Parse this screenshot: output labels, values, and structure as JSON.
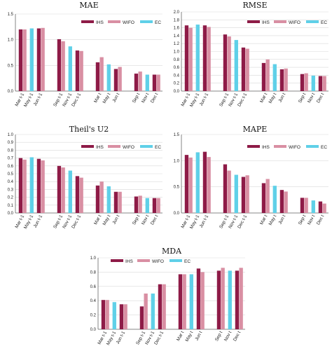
{
  "colors": {
    "IHS": "#8e1b47",
    "WIFO": "#d98fa3",
    "EC": "#5fd0e8"
  },
  "legend": [
    "IHS",
    "WIFO",
    "EC"
  ],
  "chart_data": [
    {
      "type": "bar",
      "title": "MAE",
      "categories": [
        "Mar t-1",
        "May t-1",
        "Jun t-1",
        "Sep t-1",
        "Nov t-1",
        "Dec t-1",
        "Mar t",
        "May t",
        "Jun t",
        "Sep t",
        "Nov t",
        "Dec t"
      ],
      "ylim": [
        0,
        1.5
      ],
      "yticks": [
        0,
        0.5,
        1.0,
        1.5
      ],
      "yticklabels": [
        "0.0",
        "0.5",
        "1.0",
        "1.5"
      ],
      "grid": true,
      "legend_position": "top-right",
      "series": [
        {
          "name": "IHS",
          "values": [
            1.2,
            null,
            1.22,
            1.01,
            null,
            0.79,
            0.56,
            null,
            0.43,
            0.34,
            null,
            0.32
          ]
        },
        {
          "name": "WIFO",
          "values": [
            1.2,
            null,
            1.23,
            0.97,
            null,
            0.78,
            0.66,
            null,
            0.47,
            0.38,
            null,
            0.32
          ]
        },
        {
          "name": "EC",
          "values": [
            null,
            1.22,
            null,
            null,
            0.87,
            null,
            null,
            0.52,
            null,
            null,
            0.32,
            null
          ]
        }
      ]
    },
    {
      "type": "bar",
      "title": "RMSE",
      "categories": [
        "Mar t-1",
        "May t-1",
        "Jun t-1",
        "Sep t-1",
        "Nov t-1",
        "Dec t-1",
        "Mar t",
        "May t",
        "Jun t",
        "Sep t",
        "Nov t",
        "Dec t"
      ],
      "ylim": [
        0,
        2.0
      ],
      "yticks": [
        0,
        0.2,
        0.4,
        0.6,
        0.8,
        1.0,
        1.2,
        1.4,
        1.6,
        1.8,
        2.0
      ],
      "yticklabels": [
        "0.0",
        "0.2",
        "0.4",
        "0.6",
        "0.8",
        "1.0",
        "1.2",
        "1.4",
        "1.6",
        "1.8",
        "2.0"
      ],
      "grid": true,
      "legend_position": "top-right",
      "series": [
        {
          "name": "IHS",
          "values": [
            1.66,
            null,
            1.66,
            1.43,
            null,
            1.1,
            0.71,
            null,
            0.55,
            0.43,
            null,
            0.38
          ]
        },
        {
          "name": "WIFO",
          "values": [
            1.6,
            null,
            1.62,
            1.38,
            null,
            1.07,
            0.8,
            null,
            0.57,
            0.45,
            null,
            0.38
          ]
        },
        {
          "name": "EC",
          "values": [
            null,
            1.68,
            null,
            null,
            1.29,
            null,
            null,
            0.68,
            null,
            null,
            0.39,
            null
          ]
        }
      ]
    },
    {
      "type": "bar",
      "title": "Theil's U2",
      "categories": [
        "Mar t-1",
        "May t-1",
        "Jun t-1",
        "Sep t-1",
        "Nov t-1",
        "Dec t-1",
        "Mar t",
        "May t",
        "Jun t",
        "Sep t",
        "Nov t",
        "Dec t"
      ],
      "ylim": [
        0,
        1.0
      ],
      "yticks": [
        0,
        0.1,
        0.2,
        0.3,
        0.4,
        0.5,
        0.6,
        0.7,
        0.8,
        0.9,
        1.0
      ],
      "yticklabels": [
        "0.0",
        "0.1",
        "0.2",
        "0.3",
        "0.4",
        "0.5",
        "0.6",
        "0.7",
        "0.8",
        "0.9",
        "1.0"
      ],
      "grid": true,
      "legend_position": "top-right",
      "series": [
        {
          "name": "IHS",
          "values": [
            0.7,
            null,
            0.69,
            0.6,
            null,
            0.47,
            0.35,
            null,
            0.27,
            0.21,
            null,
            0.19
          ]
        },
        {
          "name": "WIFO",
          "values": [
            0.68,
            null,
            0.67,
            0.58,
            null,
            0.45,
            0.4,
            null,
            0.27,
            0.22,
            null,
            0.19
          ]
        },
        {
          "name": "EC",
          "values": [
            null,
            0.71,
            null,
            null,
            0.54,
            null,
            null,
            0.34,
            null,
            null,
            0.19,
            null
          ]
        }
      ]
    },
    {
      "type": "bar",
      "title": "MAPE",
      "categories": [
        "Mar t-1",
        "May t-1",
        "Jun t-1",
        "Sep t-1",
        "Nov t-1",
        "Dec t-1",
        "Mar t",
        "May t",
        "Jun t",
        "Sep t",
        "Nov t",
        "Dec t"
      ],
      "ylim": [
        0,
        1.5
      ],
      "yticks": [
        0,
        0.5,
        1.0,
        1.5
      ],
      "yticklabels": [
        "0.0",
        "0.5",
        "1.0",
        "1.5"
      ],
      "grid": true,
      "legend_position": "top-right",
      "series": [
        {
          "name": "IHS",
          "values": [
            1.11,
            null,
            1.17,
            0.93,
            null,
            0.69,
            0.57,
            null,
            0.44,
            0.29,
            null,
            0.22
          ]
        },
        {
          "name": "WIFO",
          "values": [
            1.06,
            null,
            1.07,
            0.81,
            null,
            0.72,
            0.65,
            null,
            0.41,
            0.29,
            null,
            0.18
          ]
        },
        {
          "name": "EC",
          "values": [
            null,
            1.16,
            null,
            null,
            0.73,
            null,
            null,
            0.52,
            null,
            null,
            0.24,
            null
          ]
        }
      ]
    },
    {
      "type": "bar",
      "title": "MDA",
      "categories": [
        "Mar t-1",
        "May t-1",
        "Jun t-1",
        "Sep t-1",
        "Nov t-1",
        "Dec t-1",
        "Mar t",
        "May t",
        "Jun t",
        "Sep t",
        "Nov t",
        "Dec t"
      ],
      "ylim": [
        0,
        1.0
      ],
      "yticks": [
        0,
        0.2,
        0.4,
        0.6,
        0.8,
        1.0
      ],
      "yticklabels": [
        "0.0",
        "0.2",
        "0.4",
        "0.6",
        "0.8",
        "1.0"
      ],
      "grid": true,
      "legend_position": "top",
      "series": [
        {
          "name": "IHS",
          "values": [
            0.41,
            null,
            0.35,
            0.32,
            null,
            0.63,
            0.77,
            null,
            0.85,
            0.82,
            null,
            0.82
          ]
        },
        {
          "name": "WIFO",
          "values": [
            0.41,
            null,
            0.35,
            0.5,
            null,
            0.63,
            0.77,
            null,
            0.8,
            0.86,
            null,
            0.86
          ]
        },
        {
          "name": "EC",
          "values": [
            null,
            0.38,
            null,
            null,
            0.5,
            null,
            null,
            0.77,
            null,
            null,
            0.82,
            null
          ]
        }
      ]
    }
  ]
}
